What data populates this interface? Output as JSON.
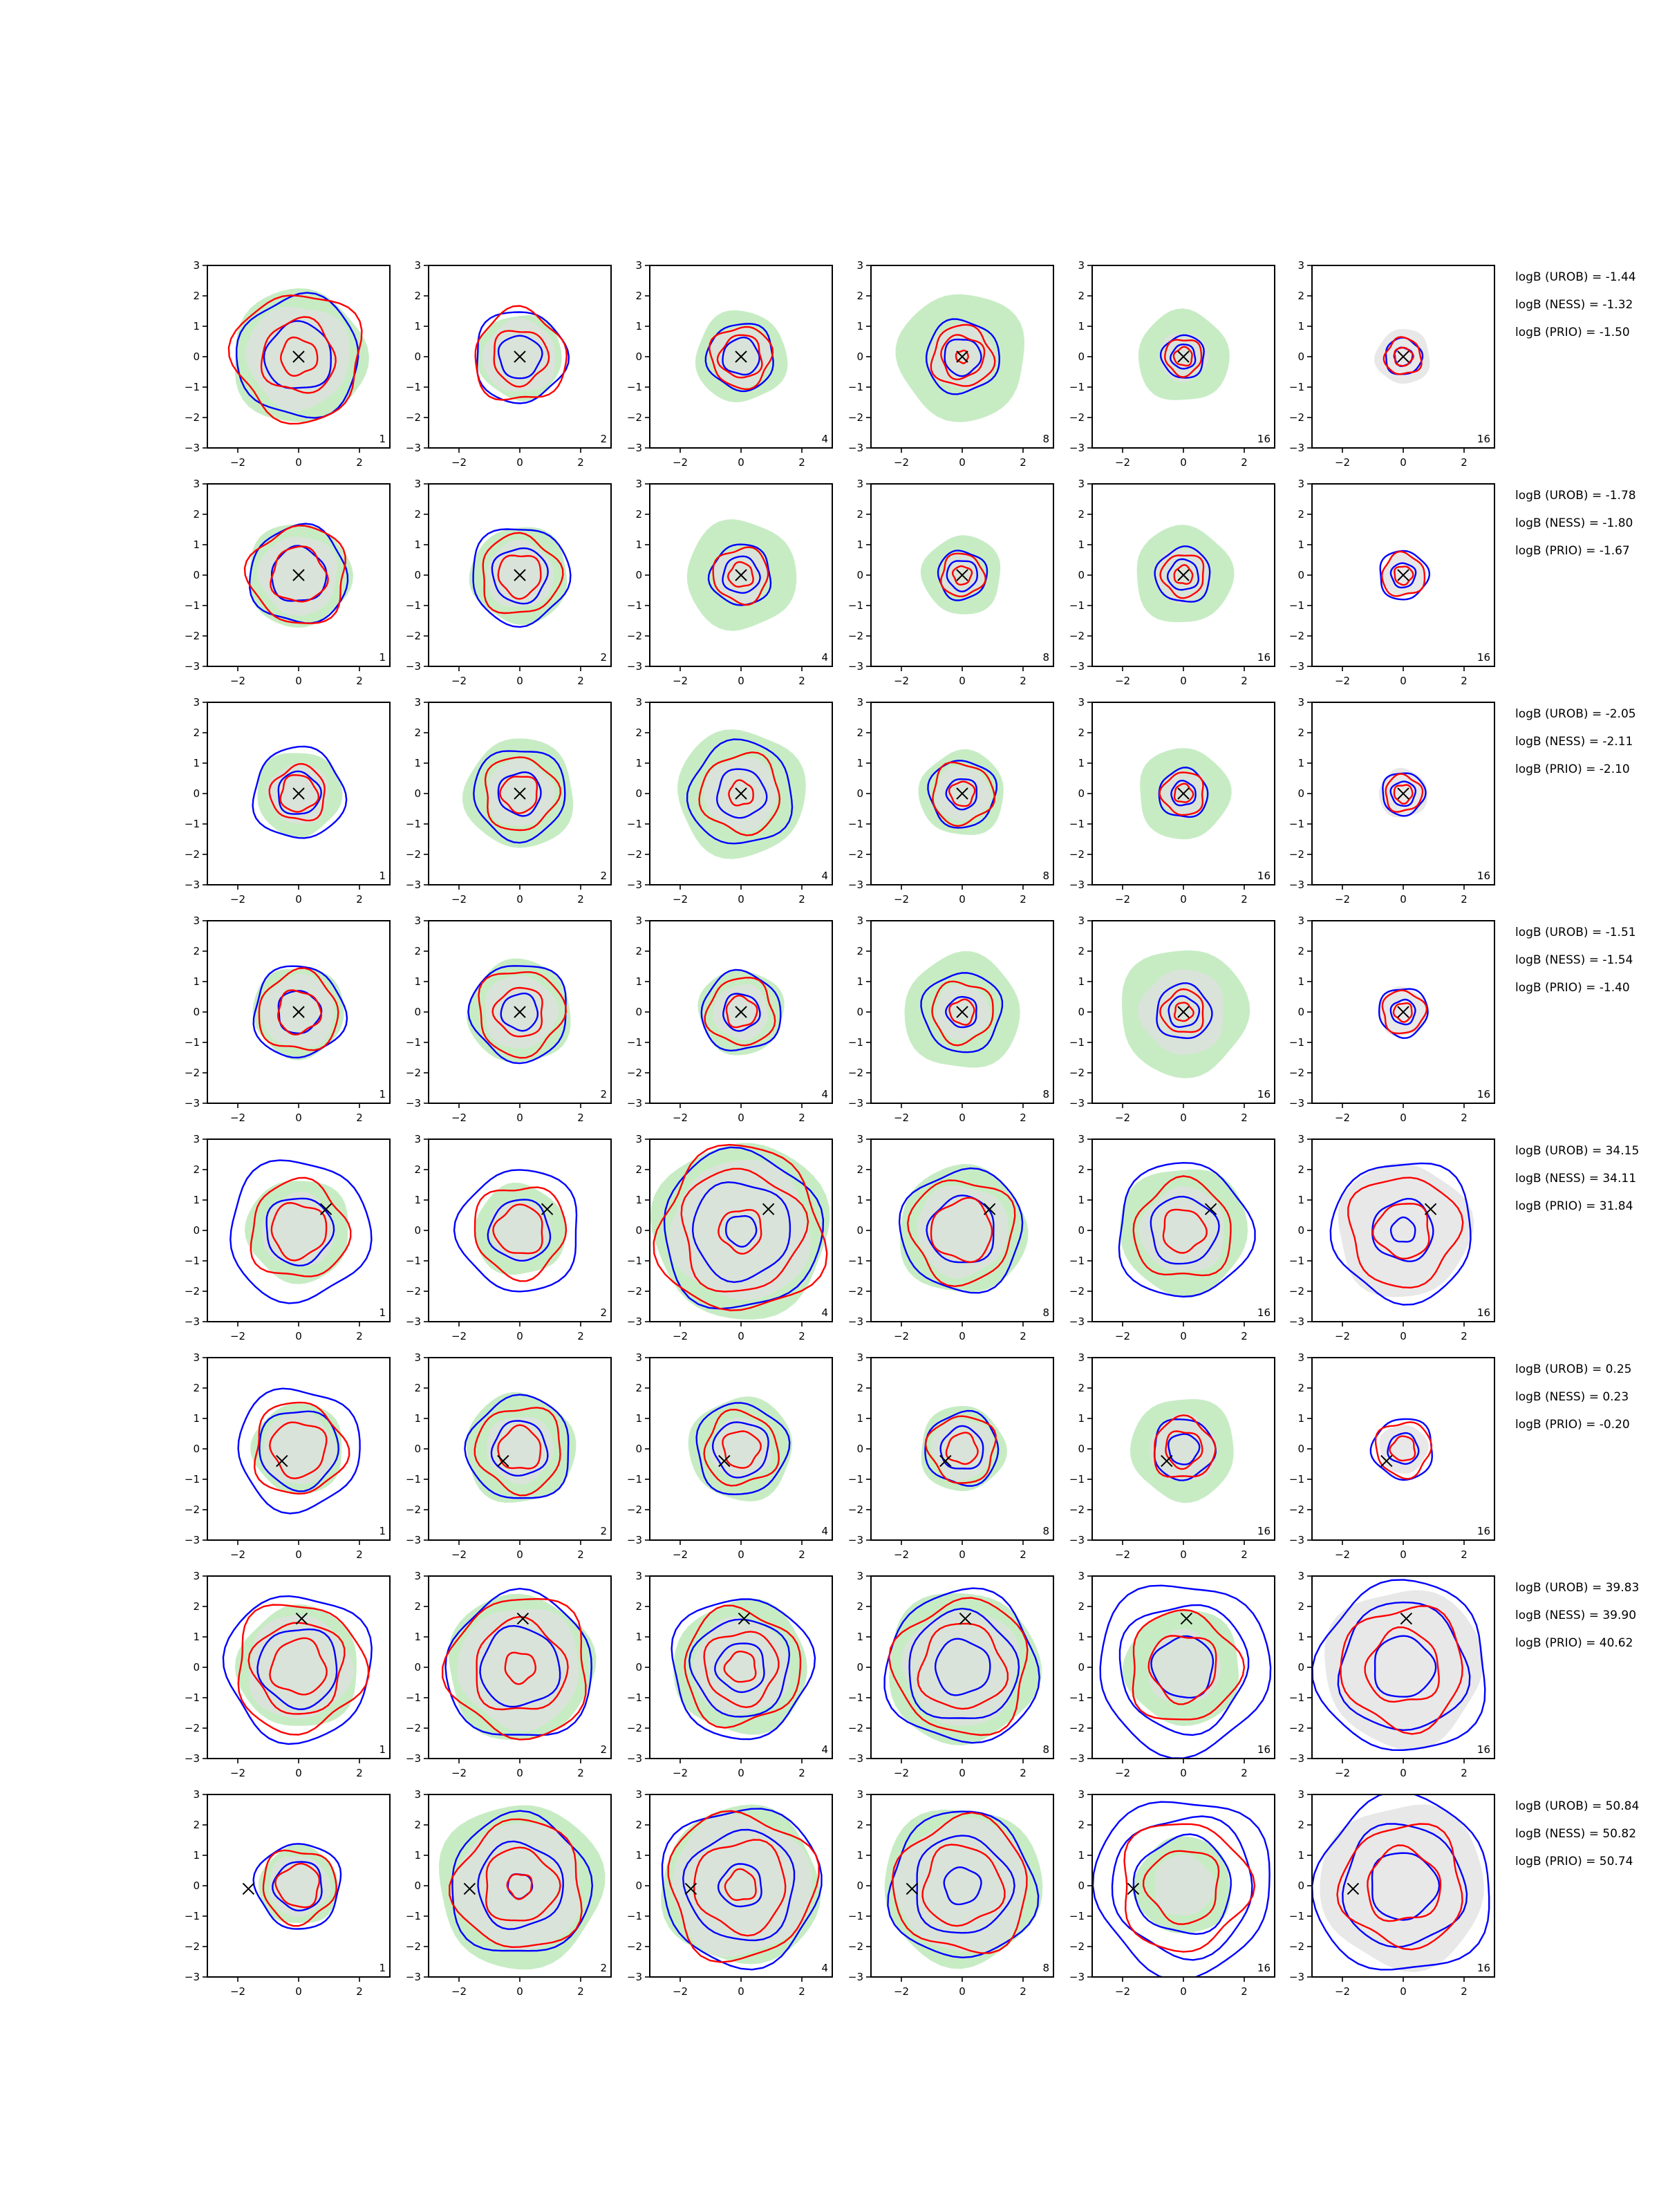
{
  "chart_data": {
    "type": "contour",
    "layout": {
      "rows": 8,
      "cols": 6
    },
    "axes": {
      "xlim": [
        -3,
        3
      ],
      "ylim": [
        -3,
        3
      ],
      "xticks": [
        -2,
        0,
        2
      ],
      "yticks": [
        3,
        2,
        1,
        0,
        -1,
        -2,
        -3
      ],
      "xtick_labels": [
        "−2",
        "0",
        "2"
      ],
      "ytick_labels": [
        "3",
        "2",
        "1",
        "0",
        "−1",
        "−2",
        "−3"
      ]
    },
    "colors": {
      "blue": "#0000ff",
      "red": "#ff0000",
      "green_fill": "#c7ecc4",
      "grey_fill": "#e0e0e0",
      "marker": "#000000"
    },
    "rows": [
      {
        "marker": [
          0,
          0
        ],
        "logB": [
          "logB (UROB) = -1.44",
          "logB (NESS) = -1.32",
          "logB (PRIO) = -1.50"
        ],
        "panels": [
          {
            "label": "1",
            "green": 2.2,
            "grey": 1.7,
            "blue": [
              2.0,
              1.1
            ],
            "red": [
              2.1,
              1.2,
              0.6
            ]
          },
          {
            "label": "2",
            "green": 1.4,
            "grey": 1.2,
            "blue": [
              1.5,
              0.7
            ],
            "red": [
              1.5,
              0.9
            ]
          },
          {
            "label": "4",
            "green": 1.5,
            "grey": 1.0,
            "blue": [
              1.1,
              0.6
            ],
            "red": [
              1.0,
              0.7
            ]
          },
          {
            "label": "8",
            "green": 2.1,
            "grey": 1.1,
            "blue": [
              1.2,
              0.6
            ],
            "red": [
              1.0,
              0.7,
              0.2
            ]
          },
          {
            "label": "16",
            "green": 1.5,
            "grey": 0.8,
            "blue": [
              0.7,
              0.4
            ],
            "red": [
              0.6,
              0.3
            ]
          },
          {
            "label": "16",
            "green": 0,
            "grey": 0.9,
            "blue": [
              0.6,
              0.3
            ],
            "red": [
              0.6,
              0.3
            ]
          }
        ]
      },
      {
        "marker": [
          0,
          0
        ],
        "logB": [
          "logB (UROB) = -1.78",
          "logB (NESS) = -1.80",
          "logB (PRIO) = -1.67"
        ],
        "panels": [
          {
            "label": "1",
            "green": 1.7,
            "grey": 1.3,
            "blue": [
              1.6,
              0.9
            ],
            "red": [
              1.6,
              0.9
            ]
          },
          {
            "label": "2",
            "green": 1.6,
            "grey": 1.1,
            "blue": [
              1.6,
              0.9
            ],
            "red": [
              1.3,
              0.7
            ]
          },
          {
            "label": "4",
            "green": 1.8,
            "grey": 0.9,
            "blue": [
              1.0,
              0.6
            ],
            "red": [
              0.9,
              0.4
            ]
          },
          {
            "label": "8",
            "green": 1.3,
            "grey": 0.7,
            "blue": [
              0.8,
              0.5
            ],
            "red": [
              0.7,
              0.3
            ]
          },
          {
            "label": "16",
            "green": 1.6,
            "grey": 0.9,
            "blue": [
              0.9,
              0.5
            ],
            "red": [
              0.7,
              0.3
            ]
          },
          {
            "label": "16",
            "green": 0,
            "grey": 0.7,
            "blue": [
              0.8,
              0.4
            ],
            "red": [
              0.7,
              0.3
            ]
          }
        ]
      },
      {
        "marker": [
          0,
          0
        ],
        "logB": [
          "logB (UROB) = -2.05",
          "logB (NESS) = -2.11",
          "logB (PRIO) = -2.10"
        ],
        "panels": [
          {
            "label": "1",
            "green": 1.4,
            "grey": 1.0,
            "blue": [
              1.5,
              0.7
            ],
            "red": [
              0.9,
              0.6
            ]
          },
          {
            "label": "2",
            "green": 1.8,
            "grey": 1.1,
            "blue": [
              1.5,
              0.7
            ],
            "red": [
              1.2,
              0.6
            ]
          },
          {
            "label": "4",
            "green": 2.1,
            "grey": 1.2,
            "blue": [
              1.7,
              0.8
            ],
            "red": [
              1.3,
              0.4
            ]
          },
          {
            "label": "8",
            "green": 1.4,
            "grey": 0.9,
            "blue": [
              1.1,
              0.5
            ],
            "red": [
              1.0,
              0.4
            ]
          },
          {
            "label": "16",
            "green": 1.5,
            "grey": 0.8,
            "blue": [
              0.8,
              0.4
            ],
            "red": [
              0.7,
              0.3
            ]
          },
          {
            "label": "16",
            "green": 0,
            "grey": 0.8,
            "blue": [
              0.7,
              0.4
            ],
            "red": [
              0.6,
              0.3
            ]
          }
        ]
      },
      {
        "marker": [
          0,
          0
        ],
        "logB": [
          "logB (UROB) = -1.51",
          "logB (NESS) = -1.54",
          "logB (PRIO) = -1.40"
        ],
        "panels": [
          {
            "label": "1",
            "green": 1.5,
            "grey": 1.2,
            "blue": [
              1.5,
              0.7
            ],
            "red": [
              1.3,
              0.7
            ]
          },
          {
            "label": "2",
            "green": 1.7,
            "grey": 1.2,
            "blue": [
              1.6,
              0.6
            ],
            "red": [
              1.4,
              0.8
            ]
          },
          {
            "label": "4",
            "green": 1.4,
            "grey": 0.9,
            "blue": [
              1.3,
              0.6
            ],
            "red": [
              1.1,
              0.5
            ]
          },
          {
            "label": "8",
            "green": 1.9,
            "grey": 0.9,
            "blue": [
              1.3,
              0.5
            ],
            "red": [
              1.0,
              0.4
            ]
          },
          {
            "label": "16",
            "green": 2.1,
            "grey": 1.4,
            "blue": [
              0.9,
              0.5
            ],
            "red": [
              0.7,
              0.3
            ]
          },
          {
            "label": "16",
            "green": 0,
            "grey": 0.8,
            "blue": [
              0.8,
              0.4
            ],
            "red": [
              0.7,
              0.3
            ]
          }
        ]
      },
      {
        "marker": [
          0.9,
          0.7
        ],
        "logB": [
          "logB (UROB) = 34.15",
          "logB (NESS) = 34.11",
          "logB (PRIO) = 31.84"
        ],
        "panels": [
          {
            "label": "1",
            "green": 1.7,
            "grey": 1.2,
            "blue": [
              2.3,
              1.1
            ],
            "red": [
              1.6,
              0.9
            ]
          },
          {
            "label": "2",
            "green": 1.5,
            "grey": 1.0,
            "blue": [
              2.0,
              1.0
            ],
            "red": [
              1.5,
              0.8
            ]
          },
          {
            "label": "4",
            "green": 2.9,
            "grey": 2.3,
            "blue": [
              2.6,
              1.6,
              0.5
            ],
            "red": [
              2.7,
              2.0,
              0.7
            ]
          },
          {
            "label": "8",
            "green": 2.1,
            "grey": 1.5,
            "blue": [
              2.0,
              1.1
            ],
            "red": [
              1.7,
              1.0
            ]
          },
          {
            "label": "16",
            "green": 2.1,
            "grey": 1.4,
            "blue": [
              2.2,
              1.1
            ],
            "red": [
              1.6,
              0.7
            ]
          },
          {
            "label": "16",
            "green": 0,
            "grey": 2.2,
            "blue": [
              2.3,
              1.0,
              0.4
            ],
            "red": [
              1.8,
              0.9
            ]
          }
        ]
      },
      {
        "marker": [
          -0.55,
          -0.4
        ],
        "logB": [
          "logB (UROB) = 0.25",
          "logB (NESS) = 0.23",
          "logB (PRIO) = -0.20"
        ],
        "panels": [
          {
            "label": "1",
            "green": 1.5,
            "grey": 1.2,
            "blue": [
              2.0,
              1.3
            ],
            "red": [
              1.5,
              0.9
            ]
          },
          {
            "label": "2",
            "green": 1.8,
            "grey": 1.1,
            "blue": [
              1.7,
              0.9
            ],
            "red": [
              1.4,
              0.7
            ]
          },
          {
            "label": "4",
            "green": 1.7,
            "grey": 1.0,
            "blue": [
              1.5,
              0.9
            ],
            "red": [
              1.2,
              0.6
            ]
          },
          {
            "label": "8",
            "green": 1.4,
            "grey": 1.0,
            "blue": [
              1.2,
              0.7
            ],
            "red": [
              1.1,
              0.5
            ]
          },
          {
            "label": "16",
            "green": 1.7,
            "grey": 1.1,
            "blue": [
              1.0,
              0.5
            ],
            "red": [
              1.0,
              0.6
            ]
          },
          {
            "label": "16",
            "green": 0,
            "grey": 0.8,
            "blue": [
              1.0,
              0.5
            ],
            "red": [
              0.9,
              0.4
            ]
          }
        ]
      },
      {
        "marker": [
          0.1,
          1.6
        ],
        "logB": [
          "logB (UROB) = 39.83",
          "logB (NESS) = 39.90",
          "logB (PRIO) = 40.62"
        ],
        "panels": [
          {
            "label": "1",
            "green": 2.0,
            "grey": 1.7,
            "blue": [
              2.4,
              1.3
            ],
            "red": [
              2.1,
              1.5,
              0.9
            ]
          },
          {
            "label": "2",
            "green": 2.4,
            "grey": 2.0,
            "blue": [
              2.4,
              1.3
            ],
            "red": [
              2.3,
              1.5,
              0.5
            ]
          },
          {
            "label": "4",
            "green": 2.2,
            "grey": 1.6,
            "blue": [
              2.3,
              1.6,
              0.8
            ],
            "red": [
              1.9,
              1.2,
              0.5
            ]
          },
          {
            "label": "8",
            "green": 2.5,
            "grey": 1.9,
            "blue": [
              2.5,
              1.8,
              0.9
            ],
            "red": [
              2.2,
              1.4
            ]
          },
          {
            "label": "16",
            "green": 1.9,
            "grey": 1.2,
            "blue": [
              2.8,
              2.1,
              1.0
            ],
            "red": [
              1.8,
              1.1
            ]
          },
          {
            "label": "16",
            "green": 0,
            "grey": 2.6,
            "blue": [
              2.8,
              2.1,
              1.0
            ],
            "red": [
              2.0,
              1.2
            ]
          }
        ]
      },
      {
        "marker": [
          -1.65,
          -0.1
        ],
        "logB": [
          "logB (UROB) = 50.84",
          "logB (NESS) = 50.82",
          "logB (PRIO) = 50.74"
        ],
        "panels": [
          {
            "label": "1",
            "green": 1.3,
            "grey": 1.0,
            "blue": [
              1.4,
              0.8
            ],
            "red": [
              1.2,
              0.7
            ]
          },
          {
            "label": "2",
            "green": 2.7,
            "grey": 2.1,
            "blue": [
              2.3,
              1.4,
              0.4
            ],
            "red": [
              2.1,
              1.2,
              0.4
            ]
          },
          {
            "label": "4",
            "green": 2.6,
            "grey": 2.3,
            "blue": [
              2.6,
              1.8,
              0.7
            ],
            "red": [
              2.4,
              1.5,
              0.5
            ]
          },
          {
            "label": "8",
            "green": 2.6,
            "grey": 2.2,
            "blue": [
              2.4,
              1.6,
              0.6
            ],
            "red": [
              2.2,
              1.3
            ]
          },
          {
            "label": "16",
            "green": 1.6,
            "grey": 1.0,
            "blue": [
              2.9,
              2.3,
              1.6
            ],
            "red": [
              2.1,
              1.2
            ]
          },
          {
            "label": "16",
            "green": 0,
            "grey": 2.7,
            "blue": [
              2.9,
              2.0,
              1.1
            ],
            "red": [
              2.0,
              1.2
            ]
          }
        ]
      }
    ]
  }
}
